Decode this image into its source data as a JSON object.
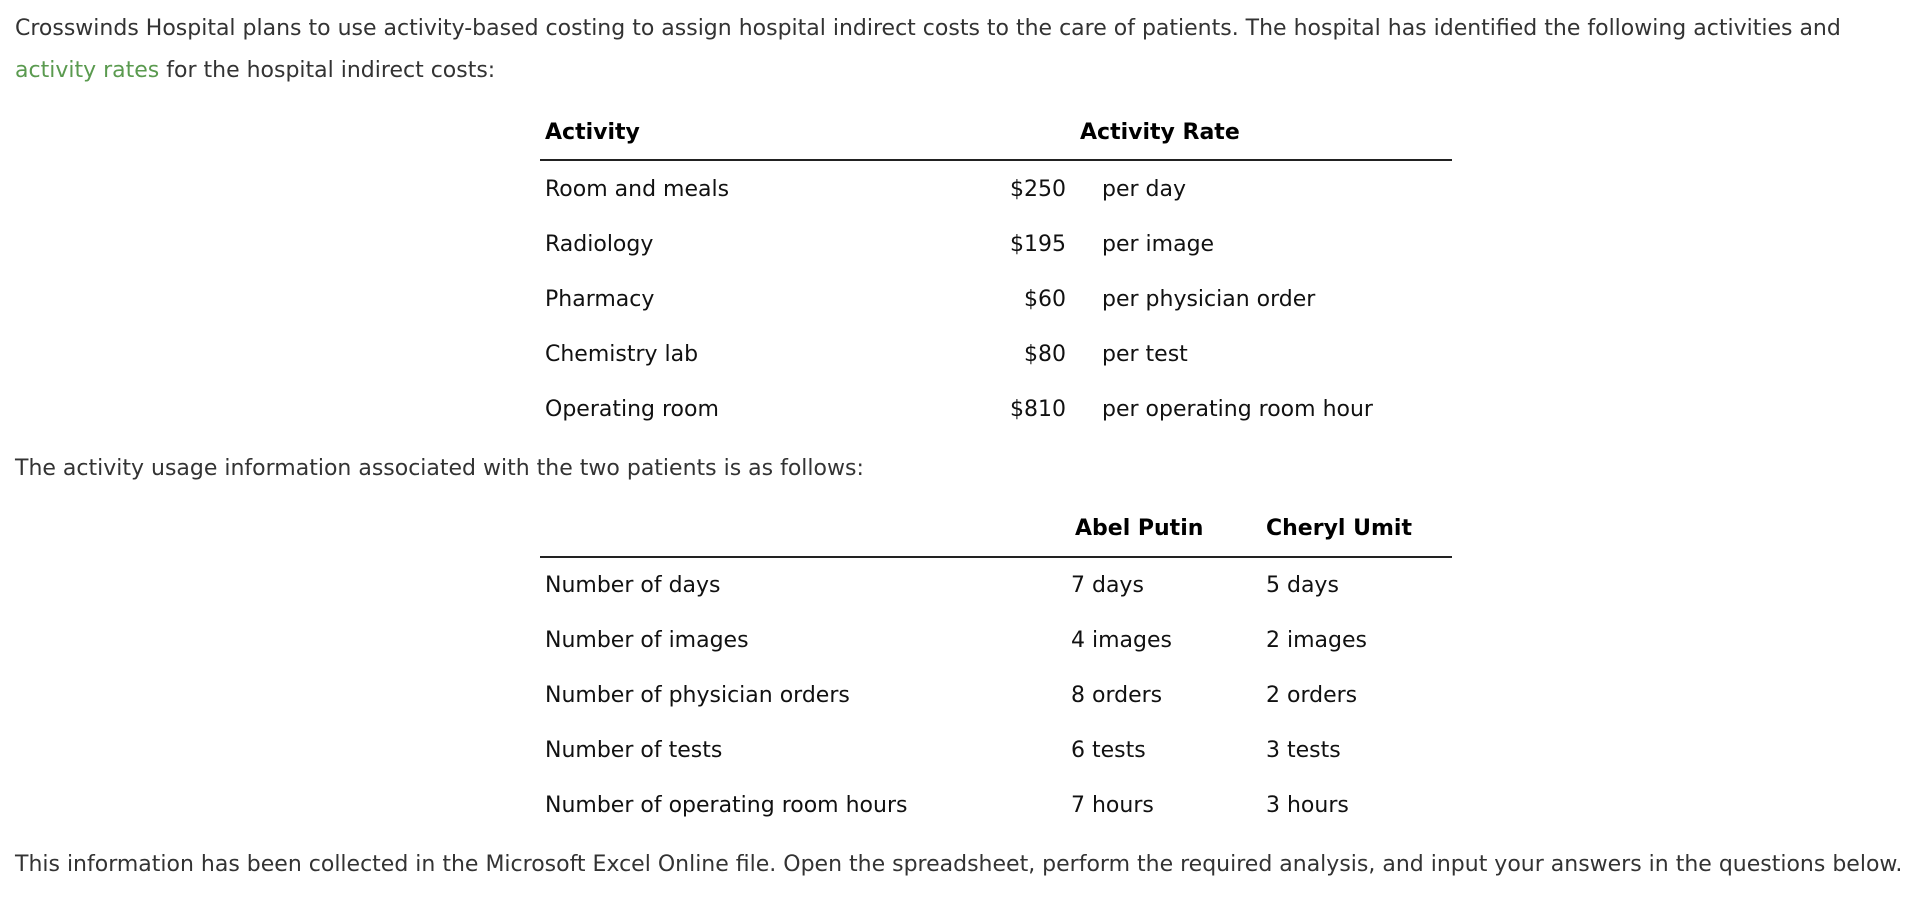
{
  "intro": {
    "text_before": "Crosswinds Hospital plans to use activity-based costing to assign hospital indirect costs to the care of patients. The hospital has identified the following activities and",
    "link": "activity rates",
    "text_after": "for the hospital indirect costs:"
  },
  "rates_table": {
    "headers": [
      "Activity",
      "Activity Rate"
    ],
    "rows": [
      [
        "Room and meals",
        "$250",
        "per day"
      ],
      [
        "Radiology",
        "$195",
        "per image"
      ],
      [
        "Pharmacy",
        "$60",
        "per physician order"
      ],
      [
        "Chemistry lab",
        "$80",
        "per test"
      ],
      [
        "Operating room",
        "$810",
        "per operating room hour"
      ]
    ]
  },
  "usage_intro": "The activity usage information associated with the two patients is as follows:",
  "usage_table": {
    "headers": [
      "Abel Putin",
      "Cheryl Umit"
    ],
    "rows": [
      [
        "Number of days",
        "7 days",
        "5 days"
      ],
      [
        "Number of images",
        "4 images",
        "2 images"
      ],
      [
        "Number of physician orders",
        "8 orders",
        "2 orders"
      ],
      [
        "Number of tests",
        "6 tests",
        "3 tests"
      ],
      [
        "Number of operating room hours",
        "7 hours",
        "3 hours"
      ]
    ]
  },
  "closing": "This information has been collected in the Microsoft Excel Online file. Open the spreadsheet, perform the required analysis, and input your answers in the questions below."
}
